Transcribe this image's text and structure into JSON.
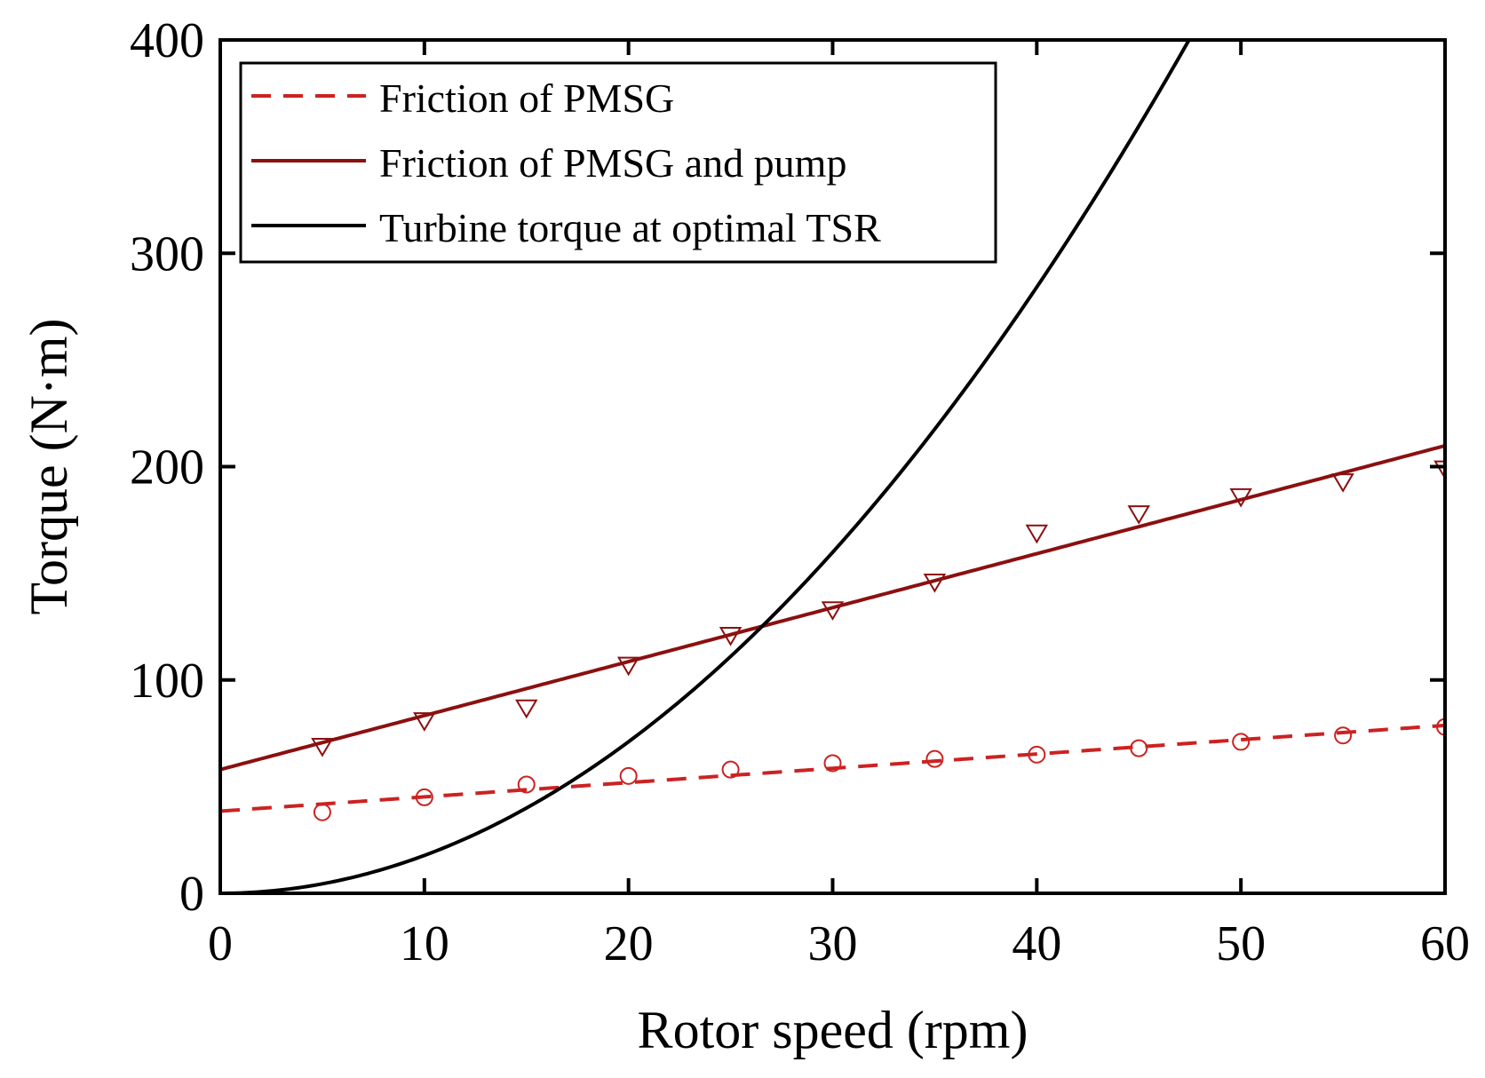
{
  "chart_data": {
    "type": "line",
    "title": "",
    "xlabel": "Rotor speed (rpm)",
    "ylabel": "Torque (N·m)",
    "xlim": [
      0,
      60
    ],
    "ylim": [
      0,
      400
    ],
    "xticks": [
      0,
      10,
      20,
      30,
      40,
      50,
      60
    ],
    "yticks": [
      0,
      100,
      200,
      300,
      400
    ],
    "xtick_labels": [
      "0",
      "10",
      "20",
      "30",
      "40",
      "50",
      "60"
    ],
    "ytick_labels": [
      "0",
      "100",
      "200",
      "300",
      "400"
    ],
    "grid": false,
    "legend_position": "top-left",
    "series": [
      {
        "name": "Friction of PMSG",
        "style": "dashed",
        "color": "#cc2222",
        "fit": {
          "kind": "linear",
          "intercept": 38.5,
          "slope": 0.67
        },
        "markers": {
          "shape": "circle",
          "x": [
            5,
            10,
            15,
            20,
            25,
            30,
            35,
            40,
            45,
            50,
            55,
            60
          ],
          "y": [
            38,
            45,
            51,
            55,
            58,
            61,
            63,
            65,
            68,
            71,
            74,
            78
          ]
        }
      },
      {
        "name": "Friction of PMSG and pump",
        "style": "solid",
        "color": "#8b1010",
        "fit": {
          "kind": "linear",
          "intercept": 58,
          "slope": 2.53
        },
        "markers": {
          "shape": "triangle-down",
          "x": [
            5,
            10,
            15,
            20,
            25,
            30,
            35,
            40,
            45,
            50,
            55,
            60
          ],
          "y": [
            69,
            81,
            87,
            107,
            121,
            133,
            146,
            169,
            178,
            186,
            193,
            199
          ]
        }
      },
      {
        "name": "Turbine torque at optimal TSR",
        "style": "solid",
        "color": "#000000",
        "fit": {
          "kind": "power",
          "coef": 0.1776,
          "exponent": 2
        }
      }
    ]
  }
}
